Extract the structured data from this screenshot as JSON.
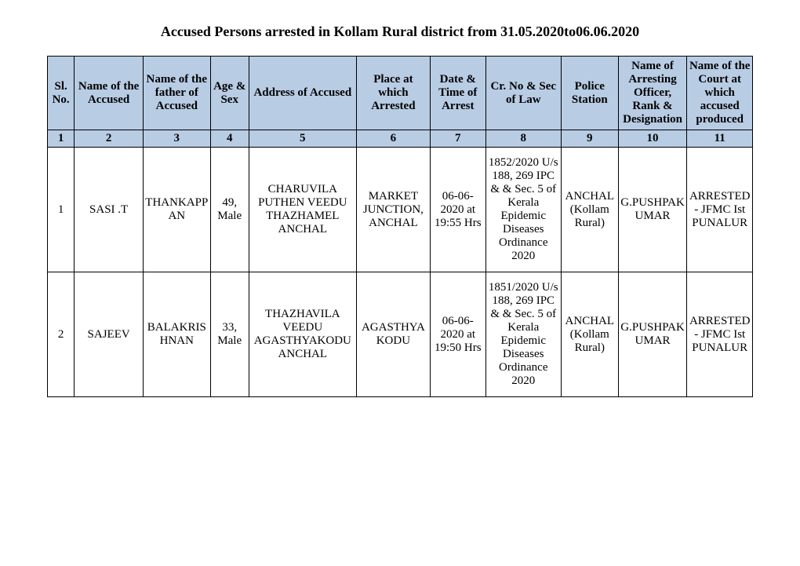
{
  "title": "Accused Persons arrested in   Kollam Rural   district from  31.05.2020to06.06.2020",
  "columns": [
    "Sl. No.",
    "Name of the Accused",
    "Name of the father of Accused",
    "Age & Sex",
    "Address of Accused",
    "Place at which Arrested",
    "Date & Time of Arrest",
    "Cr. No & Sec of Law",
    "Police Station",
    "Name of Arresting Officer, Rank & Designation",
    "Name of the Court at which accused produced"
  ],
  "col_numbers": [
    "1",
    "2",
    "3",
    "4",
    "5",
    "6",
    "7",
    "8",
    "9",
    "10",
    "11"
  ],
  "rows": [
    {
      "sl": "1",
      "name": "SASI .T",
      "father": "THANKAPPAN",
      "age_sex": "49, Male",
      "address": "CHARUVILA PUTHEN VEEDU THAZHAMEL ANCHAL",
      "place": "MARKET JUNCTION, ANCHAL",
      "datetime": "06-06-2020 at 19:55 Hrs",
      "crno": "1852/2020 U/s 188, 269 IPC & & Sec. 5 of Kerala Epidemic Diseases Ordinance 2020",
      "station": "ANCHAL (Kollam Rural)",
      "officer": "G.PUSHPAKUMAR",
      "court": "ARRESTED - JFMC Ist PUNALUR"
    },
    {
      "sl": "2",
      "name": "SAJEEV",
      "father": "BALAKRISHNAN",
      "age_sex": "33, Male",
      "address": "THAZHAVILA VEEDU AGASTHYAKODU ANCHAL",
      "place": "AGASTHYAKODU",
      "datetime": "06-06-2020 at 19:50 Hrs",
      "crno": "1851/2020 U/s 188, 269 IPC & & Sec. 5 of Kerala Epidemic Diseases Ordinance 2020",
      "station": "ANCHAL (Kollam Rural)",
      "officer": "G.PUSHPAKUMAR",
      "court": "ARRESTED - JFMC Ist PUNALUR"
    }
  ]
}
